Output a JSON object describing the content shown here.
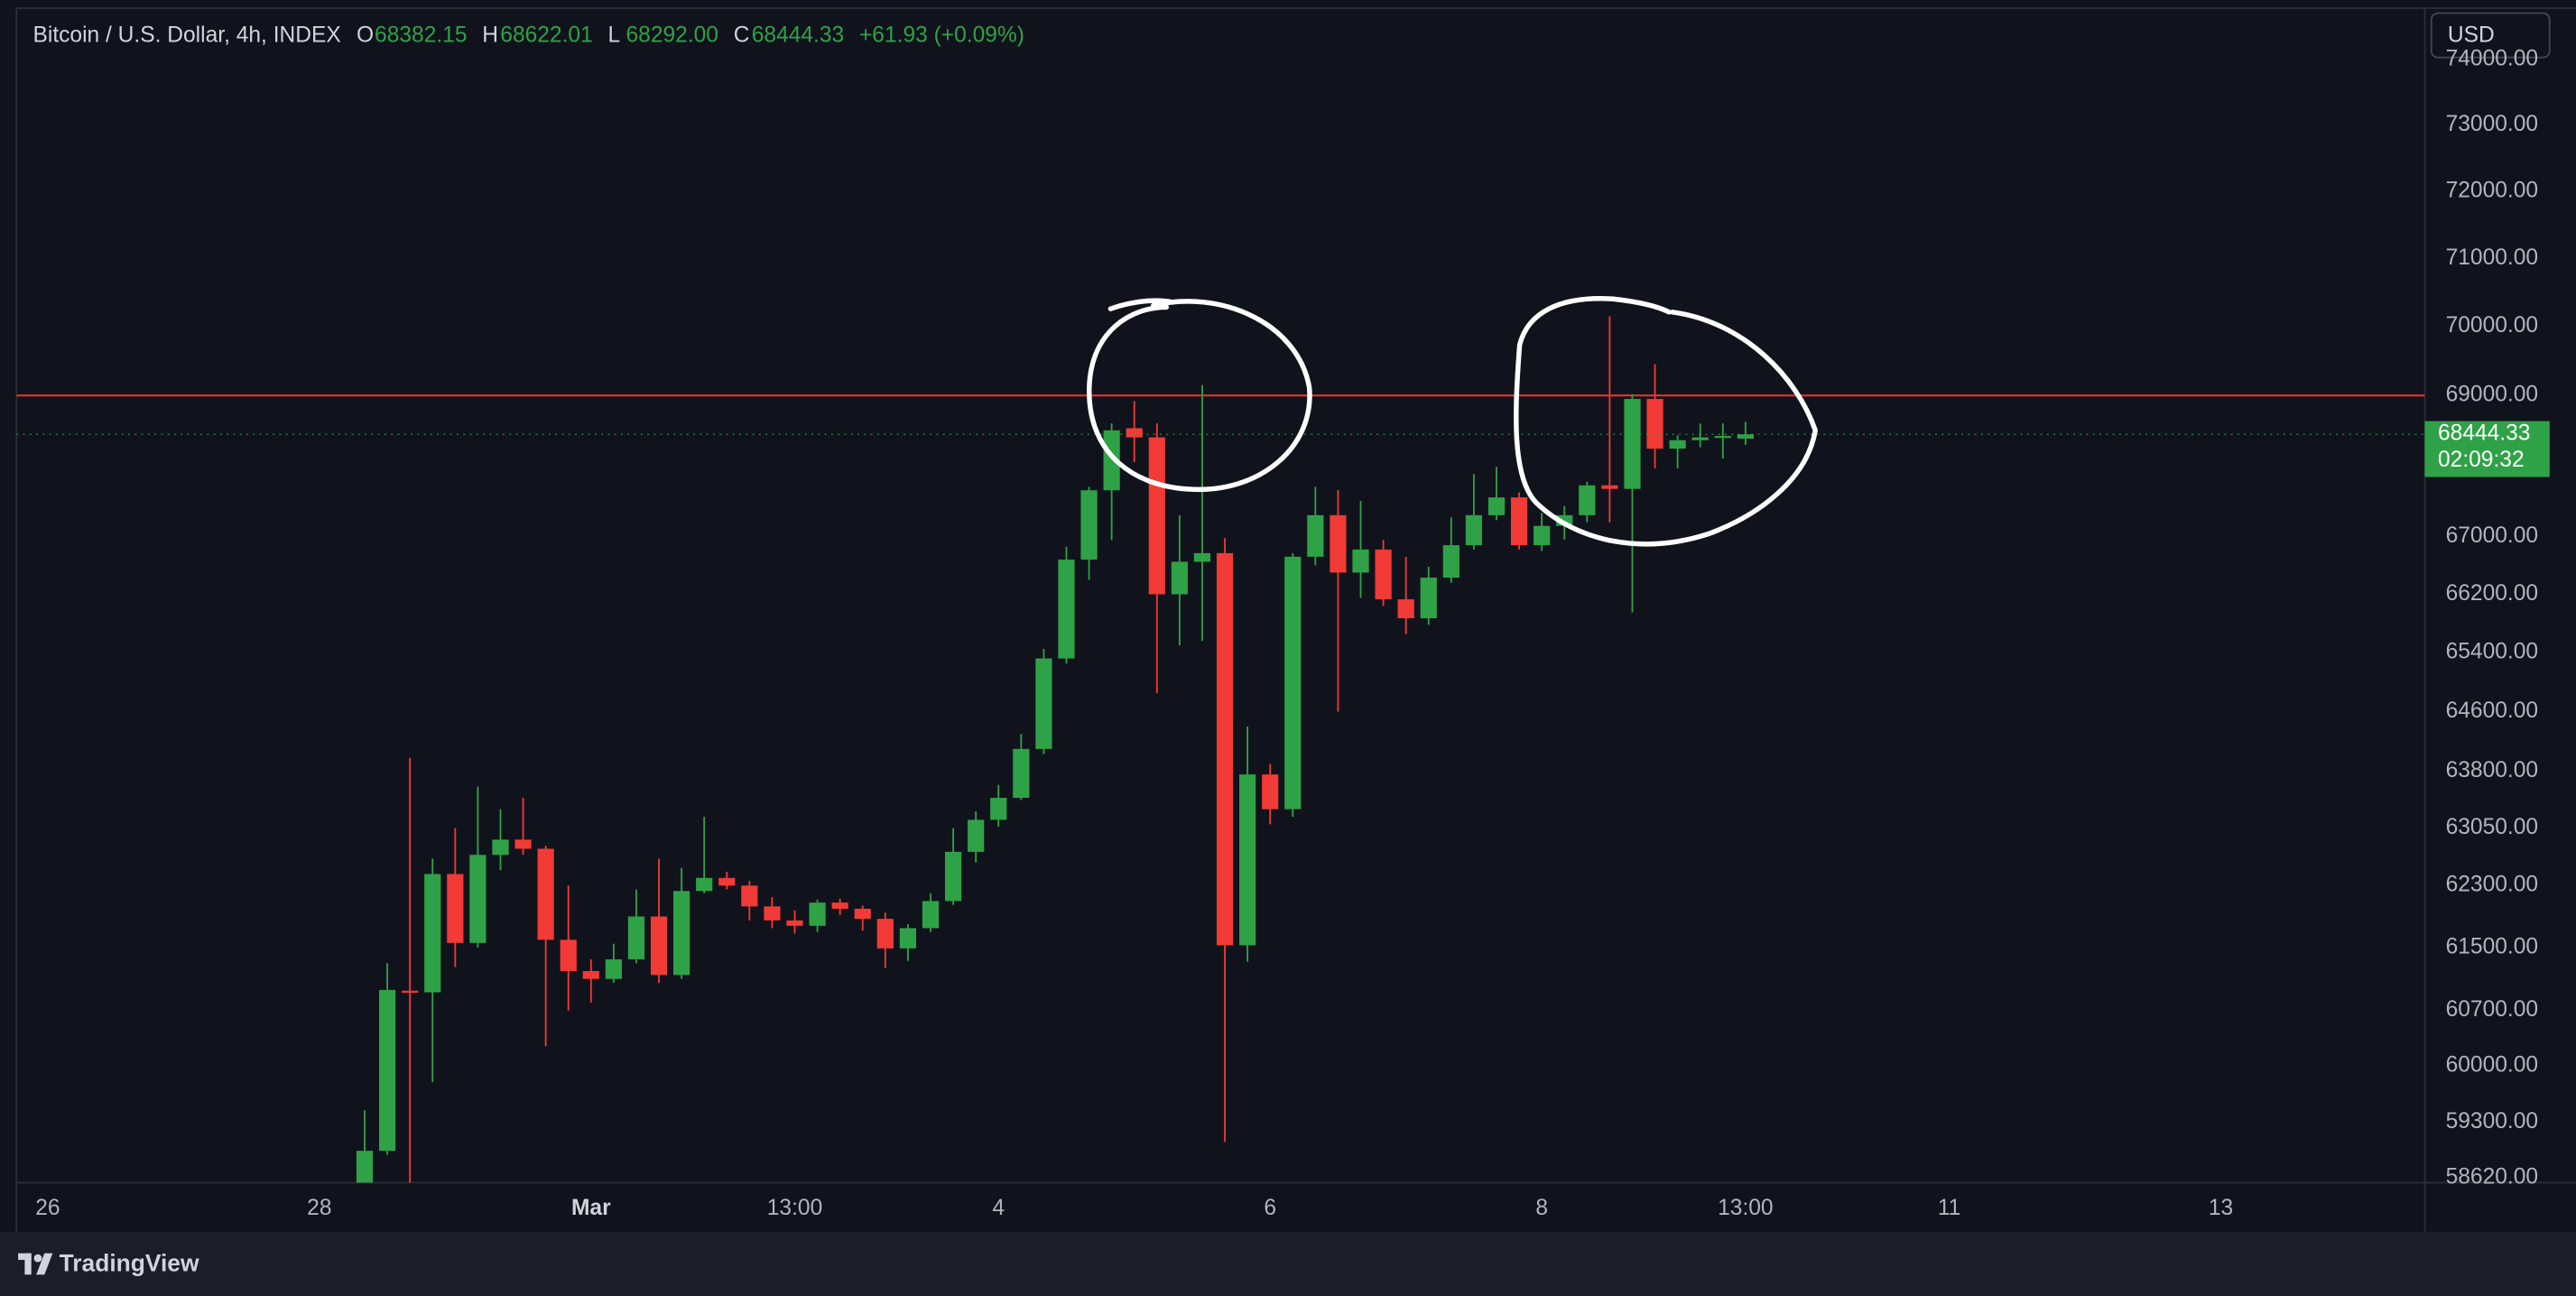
{
  "chart_data": {
    "type": "candlestick",
    "title": "Bitcoin / U.S. Dollar, 4h, INDEX",
    "ohlc_legend": [
      {
        "key": "O",
        "value": "68382.15"
      },
      {
        "key": "H",
        "value": "68622.01"
      },
      {
        "key": "L",
        "value": "68292.00"
      },
      {
        "key": "C",
        "value": "68444.33"
      }
    ],
    "change": "+61.93 (+0.09%)",
    "currency": "USD",
    "countdown": "02:09:32",
    "brand": "TradingView",
    "up_color": "#2fa247",
    "down_color": "#f23a36",
    "log_scale": true,
    "hline": {
      "value": 69000,
      "color": "#e5322e"
    },
    "ylim": [
      58560,
      74800
    ],
    "yticks": [
      {
        "value": 58620,
        "label": "58620.00"
      },
      {
        "value": 59300,
        "label": "59300.00"
      },
      {
        "value": 60000,
        "label": "60000.00"
      },
      {
        "value": 60700,
        "label": "60700.00"
      },
      {
        "value": 61500,
        "label": "61500.00"
      },
      {
        "value": 62300,
        "label": "62300.00"
      },
      {
        "value": 63050,
        "label": "63050.00"
      },
      {
        "value": 63800,
        "label": "63800.00"
      },
      {
        "value": 64600,
        "label": "64600.00"
      },
      {
        "value": 65400,
        "label": "65400.00"
      },
      {
        "value": 66200,
        "label": "66200.00"
      },
      {
        "value": 67000,
        "label": "67000.00"
      },
      {
        "value": 69000,
        "label": "69000.00"
      },
      {
        "value": 70000,
        "label": "70000.00"
      },
      {
        "value": 71000,
        "label": "71000.00"
      },
      {
        "value": 72000,
        "label": "72000.00"
      },
      {
        "value": 73000,
        "label": "73000.00"
      },
      {
        "value": 74000,
        "label": "74000.00"
      }
    ],
    "categories": [
      "26",
      null,
      null,
      null,
      null,
      null,
      null,
      null,
      null,
      null,
      null,
      null,
      "28",
      null,
      null,
      null,
      null,
      null,
      null,
      null,
      null,
      null,
      null,
      null,
      "Mar",
      null,
      null,
      null,
      null,
      null,
      null,
      null,
      null,
      "13:00",
      null,
      null,
      null,
      null,
      null,
      null,
      null,
      null,
      "4",
      null,
      null,
      null,
      null,
      null,
      null,
      null,
      null,
      null,
      null,
      null,
      "6",
      null,
      null,
      null,
      null,
      null,
      null,
      null,
      null,
      null,
      null,
      null,
      "8",
      null,
      null,
      null,
      null,
      null,
      null,
      null,
      null,
      "13:00",
      null,
      null,
      null,
      null,
      null,
      null,
      null,
      null,
      "11",
      null,
      null,
      null,
      null,
      null,
      null,
      null,
      null,
      null,
      null,
      null,
      "13",
      null,
      null,
      null,
      null,
      null,
      null,
      null,
      null,
      null
    ],
    "open": [
      null,
      null,
      null,
      null,
      null,
      null,
      null,
      null,
      null,
      null,
      null,
      null,
      null,
      null,
      58500,
      58950,
      60950,
      60930,
      62450,
      61560,
      62700,
      62900,
      62780,
      61600,
      61200,
      61100,
      61350,
      61900,
      61150,
      62230,
      62400,
      62300,
      62030,
      61850,
      61780,
      62080,
      62000,
      61870,
      61490,
      61750,
      62100,
      62740,
      63160,
      63450,
      64100,
      65320,
      66680,
      67650,
      68530,
      68400,
      66200,
      66650,
      66770,
      61530,
      63760,
      63300,
      66720,
      67300,
      66500,
      66820,
      66130,
      65870,
      66430,
      66880,
      67300,
      67550,
      66880,
      67150,
      67300,
      67720,
      67670,
      68950,
      68240,
      68360,
      68400,
      68382.15,
      null,
      null,
      null,
      null,
      null,
      null,
      null,
      null,
      null,
      null,
      null,
      null,
      null,
      null,
      null,
      null,
      null,
      null,
      null,
      null,
      null,
      null,
      null,
      null,
      null,
      null,
      null,
      null,
      null,
      null
    ],
    "high": [
      null,
      null,
      null,
      null,
      null,
      null,
      null,
      null,
      null,
      null,
      null,
      null,
      null,
      null,
      59450,
      61300,
      63980,
      62650,
      63050,
      63600,
      63300,
      63450,
      62820,
      62300,
      61350,
      61550,
      62250,
      62650,
      62530,
      63200,
      62480,
      62360,
      62150,
      61980,
      62120,
      62130,
      62040,
      61950,
      61800,
      62200,
      63050,
      63270,
      63620,
      64300,
      65450,
      66860,
      67700,
      68600,
      68920,
      68600,
      67300,
      69150,
      66980,
      64400,
      63900,
      66770,
      67700,
      67650,
      67500,
      66950,
      66720,
      66580,
      67270,
      67880,
      67980,
      67620,
      67330,
      67430,
      67770,
      70150,
      69020,
      69450,
      68430,
      68600,
      68600,
      68622.01,
      null,
      null,
      null,
      null,
      null,
      null,
      null,
      null,
      null,
      null,
      null,
      null,
      null,
      null,
      null,
      null,
      null,
      null,
      null,
      null,
      null,
      null,
      null,
      null,
      null,
      null,
      null,
      null,
      null,
      null
    ],
    "low": [
      null,
      null,
      null,
      null,
      null,
      null,
      null,
      null,
      null,
      null,
      null,
      null,
      null,
      null,
      58400,
      58900,
      58500,
      59800,
      61250,
      61500,
      62500,
      62700,
      60250,
      60700,
      60800,
      61050,
      61300,
      61050,
      61100,
      62200,
      62250,
      61850,
      61750,
      61680,
      61700,
      61920,
      61720,
      61240,
      61330,
      61700,
      62050,
      62600,
      63070,
      63420,
      64030,
      65250,
      66400,
      66950,
      68050,
      64850,
      65500,
      65560,
      59060,
      61320,
      63100,
      63200,
      66600,
      64600,
      66150,
      66040,
      65650,
      65780,
      66360,
      66820,
      67230,
      66820,
      66800,
      66960,
      67200,
      67200,
      65950,
      67960,
      67960,
      68260,
      68100,
      68292,
      null,
      null,
      null,
      null,
      null,
      null,
      null,
      null,
      null,
      null,
      null,
      null,
      null,
      null,
      null,
      null,
      null,
      null,
      null,
      null,
      null,
      null,
      null,
      null,
      null,
      null,
      null,
      null,
      null,
      null
    ],
    "close": [
      null,
      null,
      null,
      null,
      null,
      null,
      null,
      null,
      null,
      null,
      null,
      null,
      null,
      null,
      58950,
      60960,
      60930,
      62450,
      61560,
      62700,
      62900,
      62780,
      61600,
      61200,
      61100,
      61350,
      61900,
      61150,
      62230,
      62400,
      62300,
      62030,
      61850,
      61780,
      62080,
      62000,
      61870,
      61490,
      61750,
      62100,
      62740,
      63160,
      63450,
      64100,
      65320,
      66680,
      67650,
      68500,
      68400,
      66200,
      66650,
      66770,
      61530,
      63760,
      63300,
      66720,
      67300,
      66500,
      66820,
      66130,
      65870,
      66430,
      66880,
      67300,
      67550,
      66880,
      67150,
      67300,
      67720,
      67670,
      68950,
      68240,
      68360,
      68400,
      68420,
      68444.33,
      null,
      null,
      null,
      null,
      null,
      null,
      null,
      null,
      null,
      null,
      null,
      null,
      null,
      null,
      null,
      null,
      null,
      null,
      null,
      null,
      null,
      null,
      null,
      null,
      null,
      null,
      null,
      null,
      null,
      null
    ]
  }
}
